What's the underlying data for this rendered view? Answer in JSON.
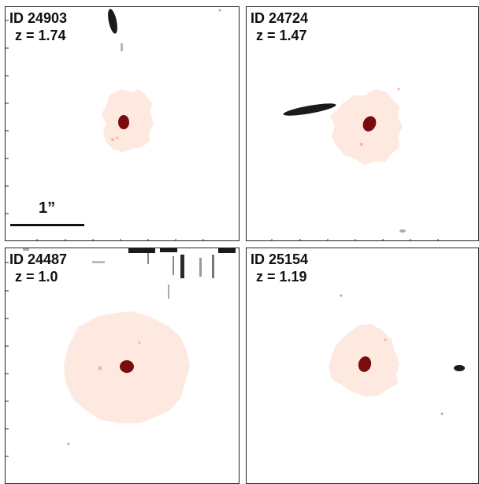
{
  "panels": [
    {
      "id": "ID 24903",
      "z": "z = 1.74"
    },
    {
      "id": "ID 24724",
      "z": "z = 1.47"
    },
    {
      "id": "ID 24487",
      "z": "z = 1.0"
    },
    {
      "id": "ID 25154",
      "z": "z = 1.19"
    }
  ],
  "scale_bar": {
    "label": "1”"
  },
  "colors": {
    "halo": "#fde9e0",
    "core": "#7a0c10",
    "source": "#1a1a1a",
    "frame": "#222222"
  }
}
